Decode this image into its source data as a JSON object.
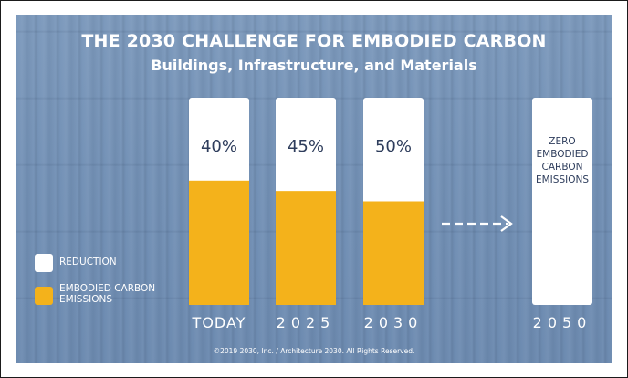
{
  "header": {
    "title": "THE 2030 CHALLENGE FOR EMBODIED CARBON",
    "subtitle": "Buildings, Infrastructure, and Materials"
  },
  "legend": {
    "items": [
      {
        "label": "REDUCTION",
        "color": "#ffffff"
      },
      {
        "label": "EMBODIED CARBON EMISSIONS",
        "color": "#f4b21b"
      }
    ]
  },
  "footer": {
    "copyright": "©2019 2030, Inc. / Architecture 2030. All Rights Reserved."
  },
  "chart_data": {
    "type": "bar",
    "stacked": true,
    "categories": [
      "TODAY",
      "2025",
      "2030",
      "2050"
    ],
    "bar_labels": [
      "40%",
      "45%",
      "50%",
      "ZERO EMBODIED CARBON EMISSIONS"
    ],
    "series": [
      {
        "name": "EMBODIED CARBON EMISSIONS",
        "color": "#f4b21b",
        "values": [
          60,
          55,
          50,
          0
        ]
      },
      {
        "name": "REDUCTION",
        "color": "#ffffff",
        "values": [
          40,
          45,
          50,
          100
        ]
      }
    ],
    "ylim": [
      0,
      100
    ],
    "arrow": {
      "from": "2030",
      "to": "2050",
      "style": "dashed"
    },
    "colors": {
      "label_text": "#2e3d5c",
      "category_text": "#ffffff"
    }
  }
}
